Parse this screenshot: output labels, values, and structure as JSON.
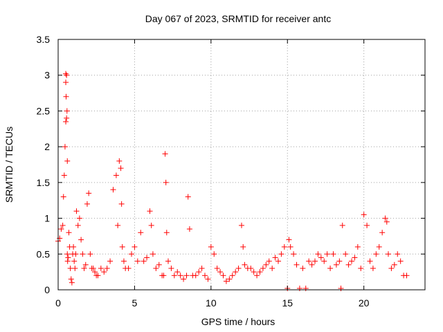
{
  "chart_data": {
    "type": "scatter",
    "title": "Day 067 of 2023, SRMTID for receiver antc",
    "xlabel": "GPS time / hours",
    "ylabel": "SRMTID / TECUs",
    "xlim": [
      0,
      24
    ],
    "ylim": [
      0,
      3.5
    ],
    "xticks": [
      0,
      5,
      10,
      15,
      20
    ],
    "yticks": [
      0,
      0.5,
      1,
      1.5,
      2,
      2.5,
      3,
      3.5
    ],
    "ytick_labels": [
      "0",
      "0.5",
      "1",
      "1.5",
      "2",
      "2.5",
      "3",
      "3.5"
    ],
    "xtick_labels": [
      "0",
      "5",
      "10",
      "15",
      "20"
    ],
    "grid": true,
    "marker": "plus",
    "color": "#ff0000",
    "series": [
      {
        "name": "SRMTID",
        "x": [
          0.0,
          0.1,
          0.2,
          0.3,
          0.35,
          0.4,
          0.45,
          0.5,
          0.5,
          0.5,
          0.52,
          0.55,
          0.55,
          0.58,
          0.6,
          0.6,
          0.62,
          0.65,
          0.7,
          0.75,
          0.8,
          0.85,
          0.9,
          0.95,
          1.0,
          1.05,
          1.1,
          1.15,
          1.2,
          1.3,
          1.4,
          1.5,
          1.6,
          1.7,
          1.8,
          1.9,
          2.0,
          2.1,
          2.2,
          2.3,
          2.4,
          2.5,
          2.6,
          2.8,
          3.0,
          3.2,
          3.4,
          3.6,
          3.8,
          3.9,
          4.0,
          4.1,
          4.15,
          4.2,
          4.3,
          4.4,
          4.6,
          4.8,
          5.0,
          5.2,
          5.4,
          5.6,
          5.8,
          6.0,
          6.1,
          6.2,
          6.4,
          6.6,
          6.8,
          6.9,
          7.0,
          7.05,
          7.1,
          7.2,
          7.4,
          7.6,
          7.8,
          8.0,
          8.2,
          8.4,
          8.5,
          8.6,
          8.8,
          9.0,
          9.2,
          9.4,
          9.6,
          9.8,
          10.0,
          10.2,
          10.4,
          10.6,
          10.8,
          11.0,
          11.2,
          11.4,
          11.6,
          11.8,
          12.0,
          12.1,
          12.2,
          12.4,
          12.6,
          12.8,
          13.0,
          13.2,
          13.4,
          13.6,
          13.8,
          14.0,
          14.2,
          14.4,
          14.6,
          14.8,
          15.0,
          15.1,
          15.2,
          15.4,
          15.6,
          15.8,
          16.0,
          16.2,
          16.4,
          16.6,
          16.8,
          17.0,
          17.2,
          17.4,
          17.6,
          17.8,
          18.0,
          18.2,
          18.4,
          18.5,
          18.6,
          18.8,
          19.0,
          19.2,
          19.4,
          19.6,
          19.8,
          20.0,
          20.2,
          20.4,
          20.6,
          20.8,
          21.0,
          21.2,
          21.4,
          21.5,
          21.6,
          21.8,
          22.0,
          22.2,
          22.4,
          22.6,
          22.8
        ],
        "y": [
          0.68,
          0.72,
          0.85,
          0.9,
          1.3,
          1.6,
          2.0,
          2.35,
          2.9,
          3.02,
          2.7,
          2.4,
          3.0,
          2.5,
          1.8,
          0.5,
          0.4,
          0.45,
          0.8,
          0.6,
          0.3,
          0.15,
          0.1,
          0.5,
          0.6,
          0.4,
          0.3,
          0.5,
          1.1,
          0.9,
          1.0,
          0.7,
          0.5,
          0.3,
          0.35,
          1.2,
          1.35,
          0.5,
          0.3,
          0.3,
          0.25,
          0.2,
          0.2,
          0.3,
          0.25,
          0.3,
          0.4,
          1.4,
          1.6,
          0.9,
          1.8,
          1.7,
          1.2,
          0.6,
          0.4,
          0.3,
          0.3,
          0.5,
          0.6,
          0.4,
          0.8,
          0.4,
          0.45,
          1.1,
          0.9,
          0.5,
          0.3,
          0.35,
          0.2,
          0.2,
          1.9,
          1.5,
          0.8,
          0.4,
          0.3,
          0.2,
          0.25,
          0.2,
          0.15,
          0.2,
          1.3,
          0.85,
          0.2,
          0.2,
          0.25,
          0.3,
          0.2,
          0.15,
          0.6,
          0.5,
          0.3,
          0.25,
          0.2,
          0.12,
          0.15,
          0.2,
          0.25,
          0.3,
          0.9,
          0.6,
          0.35,
          0.3,
          0.3,
          0.25,
          0.2,
          0.25,
          0.3,
          0.35,
          0.4,
          0.3,
          0.45,
          0.4,
          0.5,
          0.6,
          0.02,
          0.7,
          0.6,
          0.5,
          0.35,
          0.02,
          0.3,
          0.02,
          0.4,
          0.35,
          0.4,
          0.5,
          0.45,
          0.4,
          0.5,
          0.3,
          0.5,
          0.35,
          0.4,
          0.02,
          0.9,
          0.5,
          0.35,
          0.4,
          0.45,
          0.6,
          0.3,
          1.05,
          0.9,
          0.4,
          0.3,
          0.5,
          0.6,
          0.8,
          1.0,
          0.95,
          0.5,
          0.3,
          0.35,
          0.5,
          0.4,
          0.2,
          0.2
        ]
      }
    ]
  }
}
